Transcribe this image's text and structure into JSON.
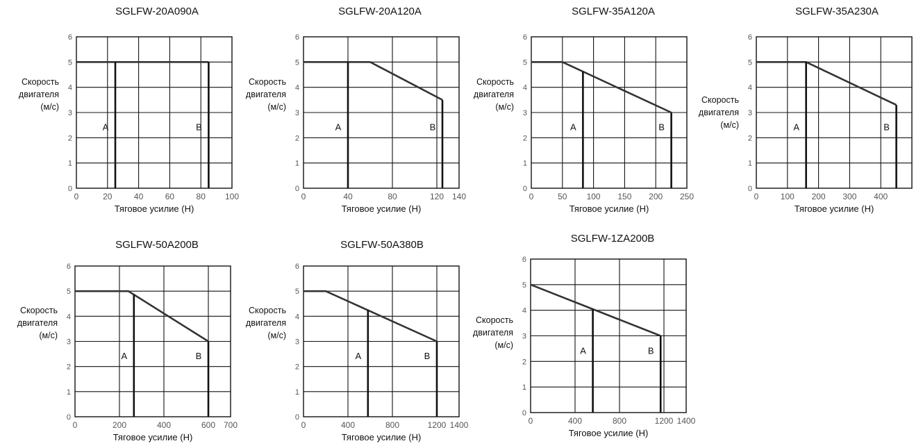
{
  "colors": {
    "axis": "#111111",
    "grid": "#111111",
    "curve": "#333333",
    "text": "#111111",
    "tick": "#555555"
  },
  "chart_data": [
    {
      "type": "line",
      "title": "SGLFW-20A090A",
      "xlabel": "Тяговое усилие (Н)",
      "ylabel": [
        "Скорость",
        "двигателя",
        "(м/с)"
      ],
      "xlim": [
        0,
        100
      ],
      "ylim": [
        0,
        6
      ],
      "xticks": [
        0,
        20,
        40,
        60,
        80,
        100
      ],
      "xtick_labels": [
        "0",
        "20",
        "40",
        "60",
        "80",
        "100"
      ],
      "yticks": [
        0,
        1,
        2,
        3,
        4,
        5,
        6
      ],
      "ytick_labels": [
        "0",
        "1",
        "2",
        "3",
        "4",
        "5",
        "6"
      ],
      "grid": true,
      "curve": {
        "x": [
          0,
          85
        ],
        "y": [
          5,
          5
        ]
      },
      "region_A": {
        "label": "A",
        "force": 25
      },
      "region_B": {
        "label": "B",
        "force": 85
      }
    },
    {
      "type": "line",
      "title": "SGLFW-20A120A",
      "xlabel": "Тяговое усилие (Н)",
      "ylabel": [
        "Скорость",
        "двигателя",
        "(м/с)"
      ],
      "xlim": [
        0,
        140
      ],
      "ylim": [
        0,
        6
      ],
      "xticks": [
        0,
        40,
        80,
        120,
        140
      ],
      "xtick_labels": [
        "0",
        "40",
        "80",
        "120",
        "140"
      ],
      "yticks": [
        0,
        1,
        2,
        3,
        4,
        5,
        6
      ],
      "ytick_labels": [
        "0",
        "1",
        "2",
        "3",
        "4",
        "5",
        "6"
      ],
      "grid": true,
      "curve": {
        "x": [
          0,
          60,
          125
        ],
        "y": [
          5,
          5,
          3.5
        ]
      },
      "region_A": {
        "label": "A",
        "force": 40
      },
      "region_B": {
        "label": "B",
        "force": 125
      }
    },
    {
      "type": "line",
      "title": "SGLFW-35A120A",
      "xlabel": "Тяговое усилие (Н)",
      "ylabel": [
        "Скорость",
        "двигателя",
        "(м/с)"
      ],
      "xlim": [
        0,
        250
      ],
      "ylim": [
        0,
        6
      ],
      "xticks": [
        0,
        50,
        100,
        150,
        200,
        250
      ],
      "xtick_labels": [
        "0",
        "50",
        "100",
        "150",
        "200",
        "250"
      ],
      "yticks": [
        0,
        1,
        2,
        3,
        4,
        5,
        6
      ],
      "ytick_labels": [
        "0",
        "1",
        "2",
        "3",
        "4",
        "5",
        "6"
      ],
      "grid": true,
      "curve": {
        "x": [
          0,
          50,
          225
        ],
        "y": [
          5,
          5,
          3
        ]
      },
      "region_A": {
        "label": "A",
        "force": 83
      },
      "region_B": {
        "label": "B",
        "force": 225
      }
    },
    {
      "type": "line",
      "title": "SGLFW-35A230A",
      "xlabel": "Тяговое усилие (Н)",
      "ylabel": [
        "Скорость",
        "двигателя",
        "(м/с)"
      ],
      "xlim": [
        0,
        500
      ],
      "ylim": [
        0,
        6
      ],
      "xticks": [
        0,
        100,
        200,
        300,
        400,
        500
      ],
      "xtick_labels": [
        "0",
        "100",
        "200",
        "300",
        "400",
        ""
      ],
      "yticks": [
        0,
        1,
        2,
        3,
        4,
        5,
        6
      ],
      "ytick_labels": [
        "0",
        "1",
        "2",
        "3",
        "4",
        "5",
        "6"
      ],
      "grid": true,
      "curve": {
        "x": [
          0,
          160,
          450
        ],
        "y": [
          5,
          5,
          3.3
        ]
      },
      "region_A": {
        "label": "A",
        "force": 160
      },
      "region_B": {
        "label": "B",
        "force": 450
      }
    },
    {
      "type": "line",
      "title": "SGLFW-50A200B",
      "xlabel": "Тяговое усилие (Н)",
      "ylabel": [
        "Скорость",
        "двигателя",
        "(м/с)"
      ],
      "xlim": [
        0,
        700
      ],
      "ylim": [
        0,
        6
      ],
      "xticks": [
        0,
        200,
        400,
        600,
        700
      ],
      "xtick_labels": [
        "0",
        "200",
        "400",
        "600",
        "700"
      ],
      "yticks": [
        0,
        1,
        2,
        3,
        4,
        5,
        6
      ],
      "ytick_labels": [
        "0",
        "1",
        "2",
        "3",
        "4",
        "5",
        "6"
      ],
      "grid": true,
      "curve": {
        "x": [
          0,
          240,
          600
        ],
        "y": [
          5,
          5,
          3
        ]
      },
      "region_A": {
        "label": "A",
        "force": 265
      },
      "region_B": {
        "label": "B",
        "force": 600
      }
    },
    {
      "type": "line",
      "title": "SGLFW-50A380B",
      "xlabel": "Тяговое усилие (Н)",
      "ylabel": [
        "Скорость",
        "двигателя",
        "(м/с)"
      ],
      "xlim": [
        0,
        1400
      ],
      "ylim": [
        0,
        6
      ],
      "xticks": [
        0,
        400,
        800,
        1200,
        1400
      ],
      "xtick_labels": [
        "0",
        "400",
        "800",
        "1200",
        "1400"
      ],
      "yticks": [
        0,
        1,
        2,
        3,
        4,
        5,
        6
      ],
      "ytick_labels": [
        "0",
        "1",
        "2",
        "3",
        "4",
        "5",
        "6"
      ],
      "grid": true,
      "curve": {
        "x": [
          0,
          200,
          1200
        ],
        "y": [
          5,
          5,
          3
        ]
      },
      "region_A": {
        "label": "A",
        "force": 580
      },
      "region_B": {
        "label": "B",
        "force": 1200
      }
    },
    {
      "type": "line",
      "title": "SGLFW-1ZA200B",
      "xlabel": "Тяговое усилие (Н)",
      "ylabel": [
        "Скорость",
        "двигателя",
        "(м/с)"
      ],
      "xlim": [
        0,
        1400
      ],
      "ylim": [
        0,
        6
      ],
      "xticks": [
        0,
        400,
        800,
        1200,
        1400
      ],
      "xtick_labels": [
        "0",
        "400",
        "800",
        "1200",
        "1400"
      ],
      "yticks": [
        0,
        1,
        2,
        3,
        4,
        5,
        6
      ],
      "ytick_labels": [
        "0",
        "1",
        "2",
        "3",
        "4",
        "5",
        "6"
      ],
      "grid": true,
      "curve": {
        "x": [
          0,
          1170
        ],
        "y": [
          5,
          3
        ]
      },
      "region_A": {
        "label": "A",
        "force": 560
      },
      "region_B": {
        "label": "B",
        "force": 1170
      }
    }
  ]
}
